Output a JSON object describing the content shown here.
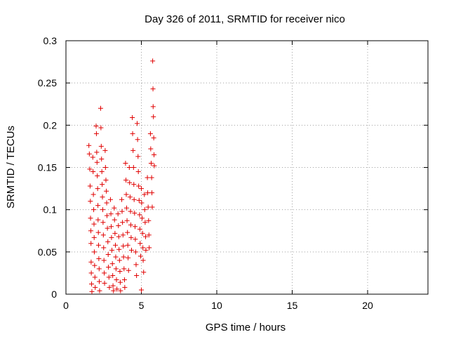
{
  "chart_data": {
    "type": "scatter",
    "title": "Day 326 of 2011, SRMTID for receiver nico",
    "xlabel": "GPS time / hours",
    "ylabel": "SRMTID / TECUs",
    "xlim": [
      0,
      24
    ],
    "ylim": [
      0,
      0.3
    ],
    "xticks": [
      0,
      5,
      10,
      15,
      20
    ],
    "xtick_labels": [
      "0",
      "5",
      "10",
      "15",
      "20"
    ],
    "yticks": [
      0,
      0.05,
      0.1,
      0.15,
      0.2,
      0.25,
      0.3
    ],
    "ytick_labels": [
      "0",
      "0.05",
      "0.1",
      "0.15",
      "0.2",
      "0.25",
      "0.3"
    ],
    "grid": true,
    "marker": "plus",
    "color": "#e00000",
    "series": [
      {
        "points": [
          [
            1.52,
            0.176
          ],
          [
            1.55,
            0.166
          ],
          [
            1.58,
            0.148
          ],
          [
            1.6,
            0.128
          ],
          [
            1.62,
            0.11
          ],
          [
            1.63,
            0.09
          ],
          [
            1.65,
            0.075
          ],
          [
            1.66,
            0.06
          ],
          [
            1.67,
            0.038
          ],
          [
            1.68,
            0.025
          ],
          [
            1.7,
            0.012
          ],
          [
            1.72,
            0.003
          ],
          [
            1.78,
            0.162
          ],
          [
            1.8,
            0.145
          ],
          [
            1.82,
            0.118
          ],
          [
            1.84,
            0.1
          ],
          [
            1.86,
            0.083
          ],
          [
            1.87,
            0.067
          ],
          [
            1.88,
            0.05
          ],
          [
            1.9,
            0.034
          ],
          [
            1.92,
            0.02
          ],
          [
            1.94,
            0.008
          ],
          [
            2.0,
            0.199
          ],
          [
            2.02,
            0.19
          ],
          [
            2.04,
            0.168
          ],
          [
            2.06,
            0.156
          ],
          [
            2.08,
            0.14
          ],
          [
            2.1,
            0.125
          ],
          [
            2.12,
            0.105
          ],
          [
            2.13,
            0.088
          ],
          [
            2.15,
            0.073
          ],
          [
            2.16,
            0.058
          ],
          [
            2.18,
            0.042
          ],
          [
            2.2,
            0.03
          ],
          [
            2.21,
            0.015
          ],
          [
            2.23,
            0.004
          ],
          [
            2.3,
            0.22
          ],
          [
            2.32,
            0.197
          ],
          [
            2.34,
            0.175
          ],
          [
            2.36,
            0.16
          ],
          [
            2.38,
            0.145
          ],
          [
            2.4,
            0.13
          ],
          [
            2.42,
            0.115
          ],
          [
            2.44,
            0.1
          ],
          [
            2.46,
            0.085
          ],
          [
            2.48,
            0.07
          ],
          [
            2.5,
            0.055
          ],
          [
            2.52,
            0.04
          ],
          [
            2.54,
            0.025
          ],
          [
            2.56,
            0.013
          ],
          [
            2.6,
            0.17
          ],
          [
            2.62,
            0.15
          ],
          [
            2.65,
            0.135
          ],
          [
            2.68,
            0.122
          ],
          [
            2.7,
            0.108
          ],
          [
            2.72,
            0.093
          ],
          [
            2.75,
            0.078
          ],
          [
            2.78,
            0.062
          ],
          [
            2.8,
            0.047
          ],
          [
            2.82,
            0.032
          ],
          [
            2.85,
            0.02
          ],
          [
            2.88,
            0.008
          ],
          [
            2.95,
            0.112
          ],
          [
            2.98,
            0.095
          ],
          [
            3.0,
            0.08
          ],
          [
            3.02,
            0.067
          ],
          [
            3.05,
            0.052
          ],
          [
            3.08,
            0.036
          ],
          [
            3.1,
            0.022
          ],
          [
            3.12,
            0.01
          ],
          [
            3.15,
            0.004
          ],
          [
            3.2,
            0.102
          ],
          [
            3.22,
            0.088
          ],
          [
            3.25,
            0.072
          ],
          [
            3.28,
            0.058
          ],
          [
            3.3,
            0.044
          ],
          [
            3.32,
            0.03
          ],
          [
            3.35,
            0.017
          ],
          [
            3.38,
            0.006
          ],
          [
            3.45,
            0.095
          ],
          [
            3.48,
            0.081
          ],
          [
            3.5,
            0.068
          ],
          [
            3.52,
            0.053
          ],
          [
            3.55,
            0.04
          ],
          [
            3.58,
            0.027
          ],
          [
            3.6,
            0.014
          ],
          [
            3.62,
            0.004
          ],
          [
            3.7,
            0.112
          ],
          [
            3.72,
            0.098
          ],
          [
            3.75,
            0.085
          ],
          [
            3.78,
            0.07
          ],
          [
            3.8,
            0.057
          ],
          [
            3.82,
            0.044
          ],
          [
            3.85,
            0.03
          ],
          [
            3.88,
            0.017
          ],
          [
            3.9,
            0.008
          ],
          [
            3.95,
            0.155
          ],
          [
            3.98,
            0.135
          ],
          [
            4.0,
            0.118
          ],
          [
            4.02,
            0.102
          ],
          [
            4.05,
            0.087
          ],
          [
            4.08,
            0.073
          ],
          [
            4.1,
            0.058
          ],
          [
            4.12,
            0.043
          ],
          [
            4.15,
            0.028
          ],
          [
            4.2,
            0.15
          ],
          [
            4.22,
            0.132
          ],
          [
            4.25,
            0.115
          ],
          [
            4.28,
            0.098
          ],
          [
            4.3,
            0.082
          ],
          [
            4.32,
            0.067
          ],
          [
            4.35,
            0.052
          ],
          [
            4.4,
            0.209
          ],
          [
            4.42,
            0.19
          ],
          [
            4.45,
            0.17
          ],
          [
            4.48,
            0.15
          ],
          [
            4.5,
            0.13
          ],
          [
            4.52,
            0.112
          ],
          [
            4.55,
            0.096
          ],
          [
            4.58,
            0.08
          ],
          [
            4.6,
            0.065
          ],
          [
            4.62,
            0.05
          ],
          [
            4.65,
            0.035
          ],
          [
            4.68,
            0.022
          ],
          [
            4.72,
            0.202
          ],
          [
            4.75,
            0.183
          ],
          [
            4.78,
            0.163
          ],
          [
            4.8,
            0.145
          ],
          [
            4.82,
            0.128
          ],
          [
            4.85,
            0.111
          ],
          [
            4.88,
            0.094
          ],
          [
            4.9,
            0.077
          ],
          [
            4.92,
            0.06
          ],
          [
            4.95,
            0.045
          ],
          [
            5.0,
            0.125
          ],
          [
            5.02,
            0.108
          ],
          [
            5.05,
            0.09
          ],
          [
            5.08,
            0.072
          ],
          [
            5.1,
            0.055
          ],
          [
            5.12,
            0.04
          ],
          [
            5.15,
            0.026
          ],
          [
            5.0,
            0.005
          ],
          [
            5.2,
            0.118
          ],
          [
            5.22,
            0.1
          ],
          [
            5.25,
            0.085
          ],
          [
            5.28,
            0.068
          ],
          [
            5.3,
            0.052
          ],
          [
            5.4,
            0.138
          ],
          [
            5.42,
            0.12
          ],
          [
            5.45,
            0.103
          ],
          [
            5.48,
            0.087
          ],
          [
            5.5,
            0.07
          ],
          [
            5.52,
            0.055
          ],
          [
            5.6,
            0.19
          ],
          [
            5.62,
            0.172
          ],
          [
            5.65,
            0.155
          ],
          [
            5.68,
            0.138
          ],
          [
            5.7,
            0.12
          ],
          [
            5.72,
            0.103
          ],
          [
            5.75,
            0.276
          ],
          [
            5.77,
            0.243
          ],
          [
            5.78,
            0.222
          ],
          [
            5.8,
            0.21
          ],
          [
            5.82,
            0.185
          ],
          [
            5.84,
            0.165
          ],
          [
            5.86,
            0.152
          ]
        ]
      }
    ]
  }
}
